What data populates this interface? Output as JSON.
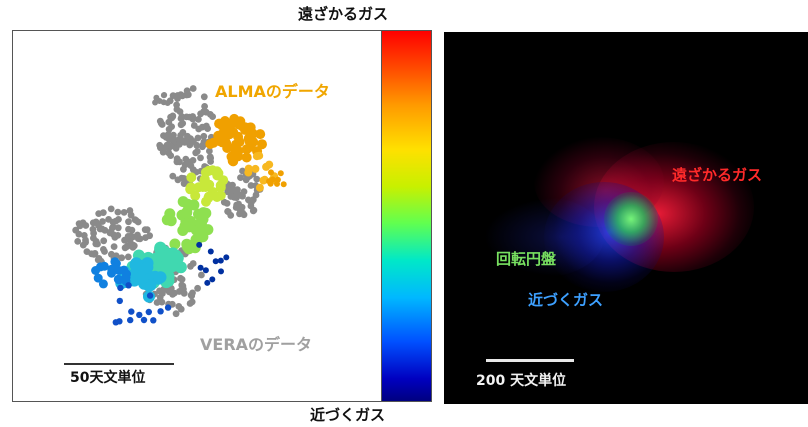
{
  "left_panel": {
    "alma_label": "ALMAのデータ",
    "vera_label": "VERAのデータ",
    "scale_label": "50天文単位",
    "colorbar": {
      "top_label": "遠ざかるガス",
      "bottom_label": "近づくガス",
      "colors": [
        "#ff0000",
        "#ff9a00",
        "#ffe000",
        "#60ff50",
        "#00b8ff",
        "#0000c0"
      ]
    }
  },
  "right_panel": {
    "receding_label": "遠ざかるガス",
    "disk_label": "回転円盤",
    "approaching_label": "近づくガス",
    "scale_label": "200 天文単位"
  }
}
